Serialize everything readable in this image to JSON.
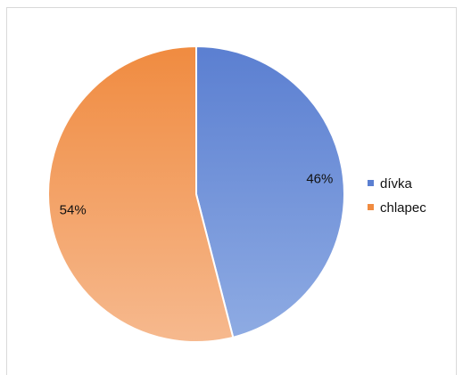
{
  "chart_data": {
    "type": "pie",
    "categories": [
      "dívka",
      "chlapec"
    ],
    "values": [
      46,
      54
    ],
    "value_labels": [
      "46%",
      "54%"
    ],
    "colors": [
      "#5b7fd1",
      "#f08b40"
    ],
    "colors_light": [
      "#8eabe3",
      "#f6b98e"
    ],
    "title": "",
    "legend_position": "right"
  }
}
